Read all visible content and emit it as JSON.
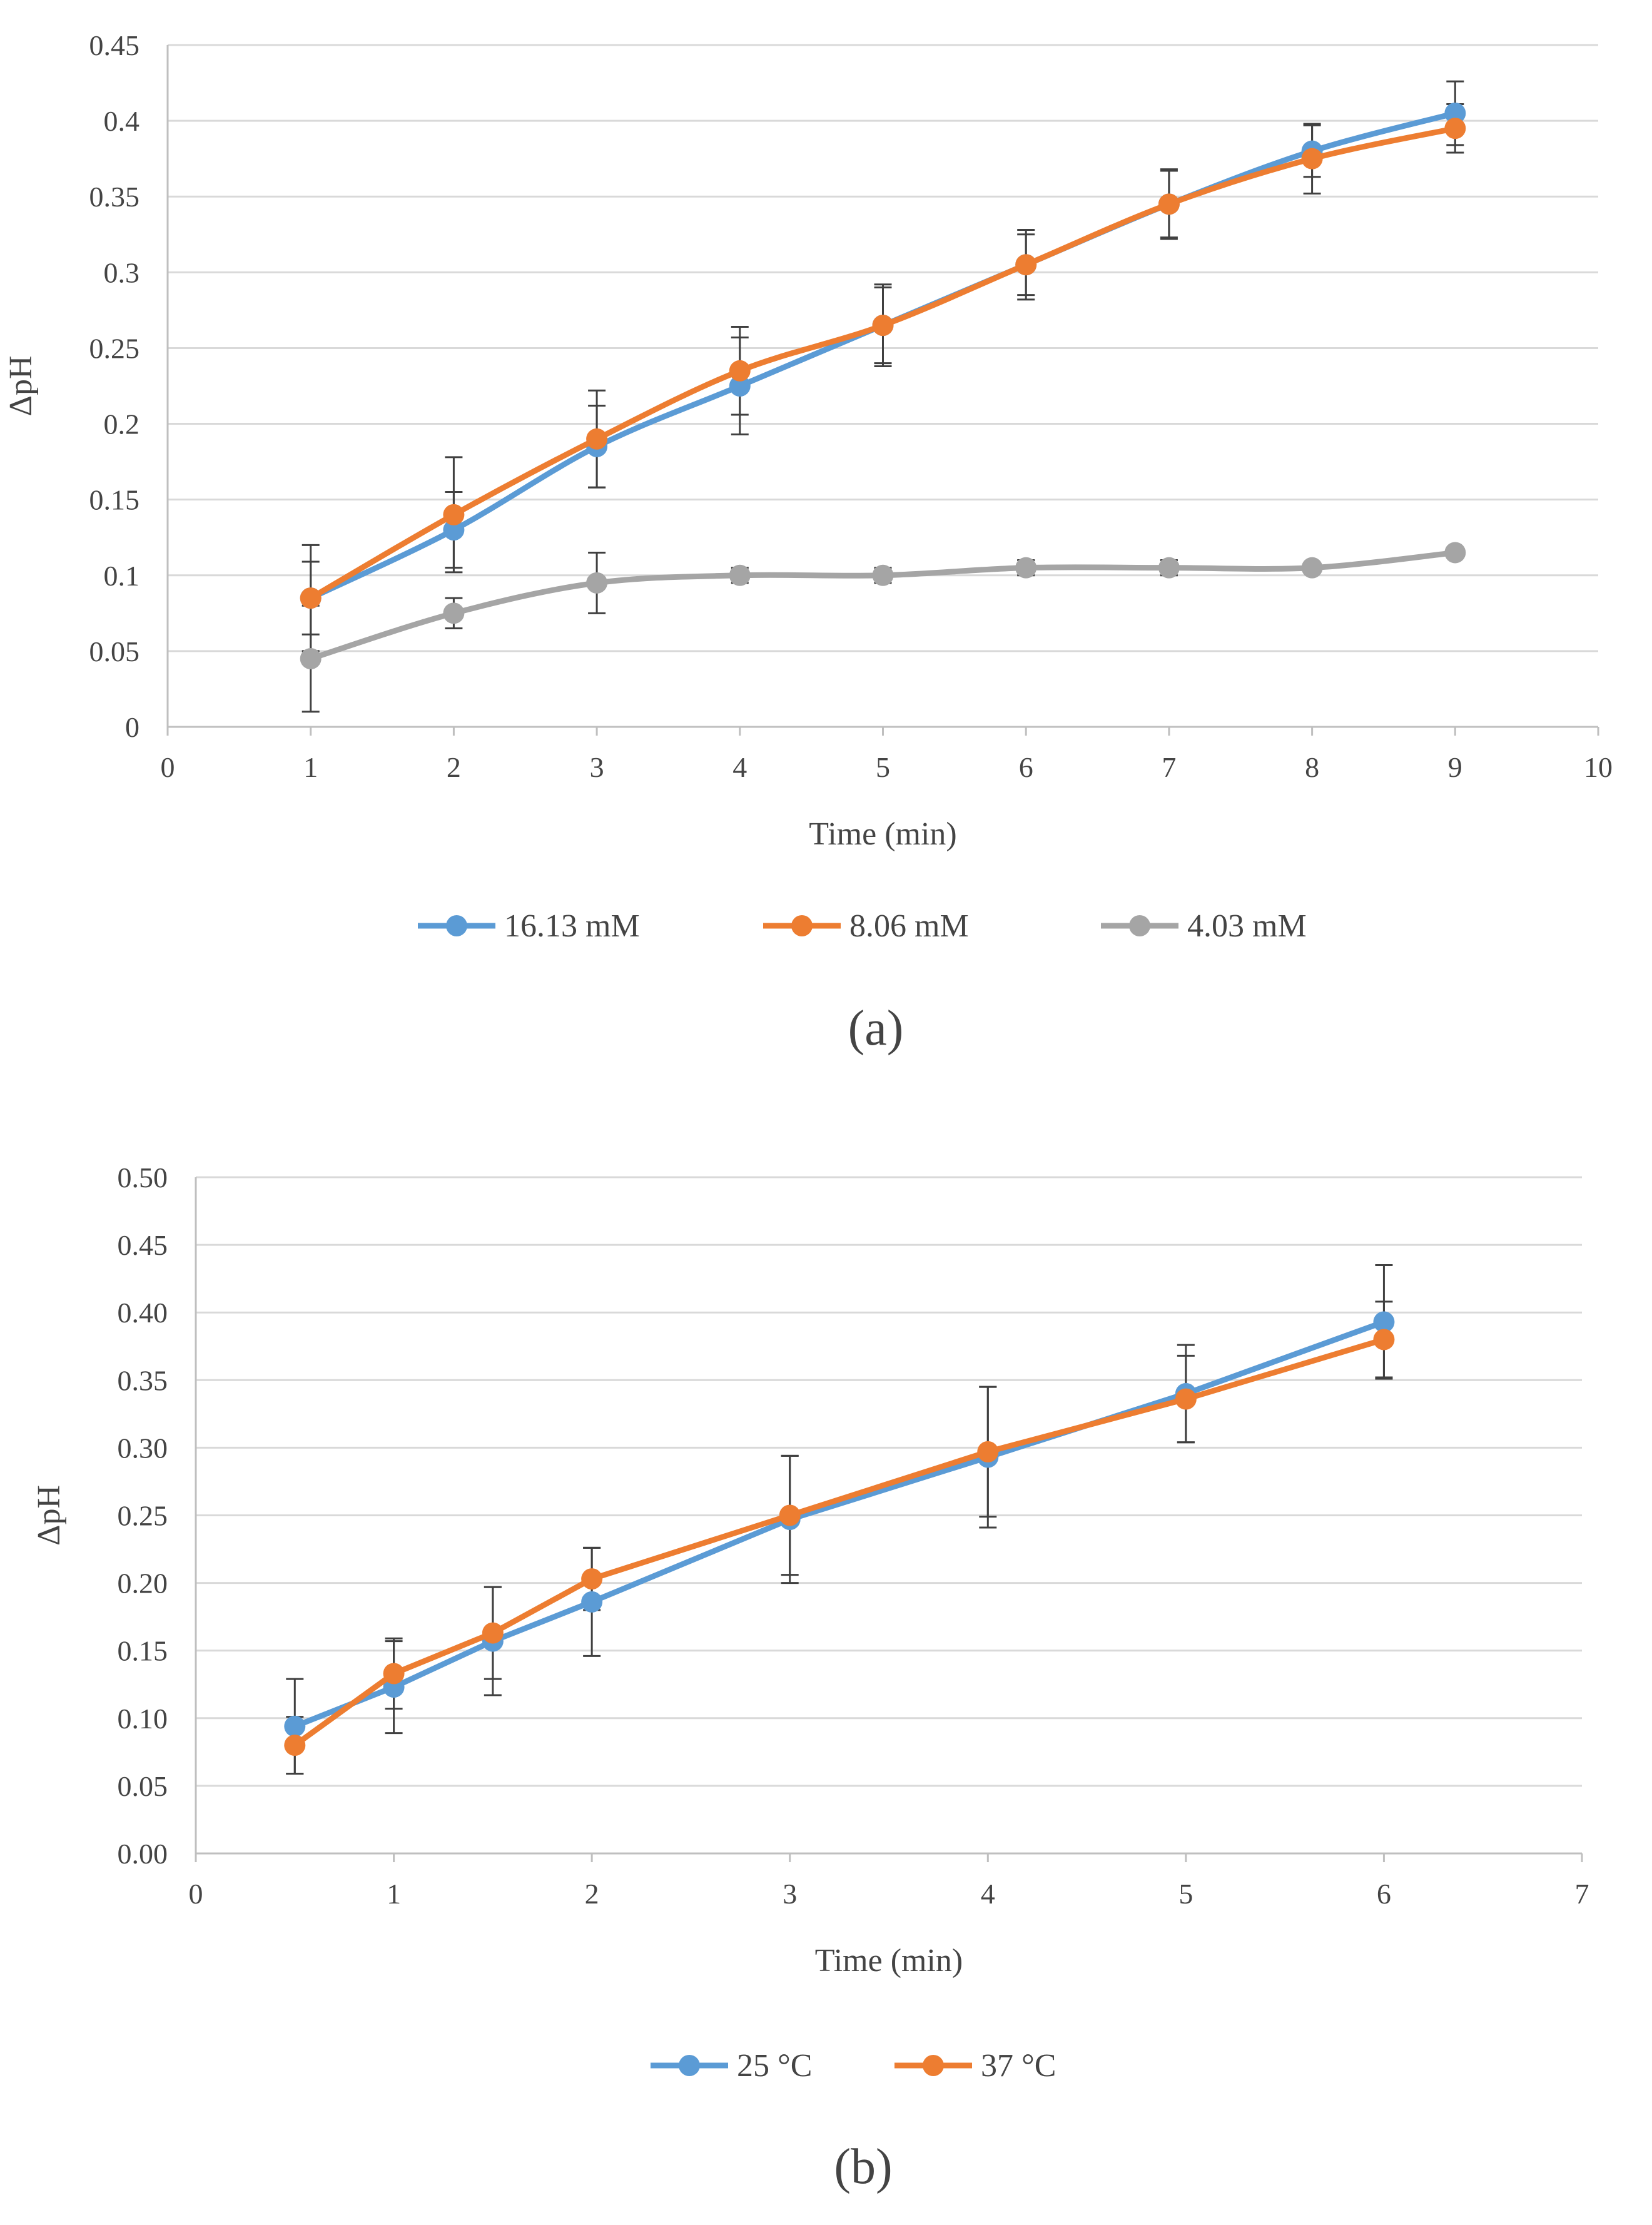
{
  "chart_data": [
    {
      "id": "a",
      "type": "line",
      "caption": "(a)",
      "xlabel": "Time (min)",
      "ylabel": "ΔpH",
      "xlim": [
        0,
        10
      ],
      "ylim": [
        0,
        0.45
      ],
      "xticks": [
        0,
        1,
        2,
        3,
        4,
        5,
        6,
        7,
        8,
        9,
        10
      ],
      "yticks": [
        0,
        0.05,
        0.1,
        0.15,
        0.2,
        0.25,
        0.3,
        0.35,
        0.4,
        0.45
      ],
      "xtick_labels": [
        "0",
        "1",
        "2",
        "3",
        "4",
        "5",
        "6",
        "7",
        "8",
        "9",
        "10"
      ],
      "ytick_labels": [
        "0",
        "0.05",
        "0.1",
        "0.15",
        "0.2",
        "0.25",
        "0.3",
        "0.35",
        "0.4",
        "0.45"
      ],
      "grid": "horizontal",
      "legend_position": "bottom",
      "series": [
        {
          "name": "16.13 mM",
          "color": "#5b9bd5",
          "x": [
            1,
            2,
            3,
            4,
            5,
            6,
            7,
            8,
            9
          ],
          "values": [
            0.085,
            0.13,
            0.185,
            0.225,
            0.265,
            0.305,
            0.345,
            0.38,
            0.405
          ],
          "errors": [
            0.035,
            0.025,
            0.027,
            0.032,
            0.025,
            0.02,
            0.023,
            0.017,
            0.021
          ]
        },
        {
          "name": "8.06 mM",
          "color": "#ed7d31",
          "x": [
            1,
            2,
            3,
            4,
            5,
            6,
            7,
            8,
            9
          ],
          "values": [
            0.085,
            0.14,
            0.19,
            0.235,
            0.265,
            0.305,
            0.345,
            0.375,
            0.395
          ],
          "errors": [
            0.024,
            0.038,
            0.032,
            0.029,
            0.027,
            0.023,
            0.022,
            0.023,
            0.016
          ]
        },
        {
          "name": "4.03 mM",
          "color": "#a5a5a5",
          "x": [
            1,
            2,
            3,
            4,
            5,
            6,
            7,
            8,
            9
          ],
          "values": [
            0.045,
            0.075,
            0.095,
            0.1,
            0.1,
            0.105,
            0.105,
            0.105,
            0.115
          ],
          "errors": [
            0.035,
            0.01,
            0.02,
            0.005,
            0.005,
            0.005,
            0.005,
            0,
            0
          ]
        }
      ]
    },
    {
      "id": "b",
      "type": "line",
      "caption": "(b)",
      "xlabel": "Time (min)",
      "ylabel": "ΔpH",
      "xlim": [
        0,
        7
      ],
      "ylim": [
        0,
        0.5
      ],
      "xticks": [
        0,
        1,
        2,
        3,
        4,
        5,
        6,
        7
      ],
      "yticks": [
        0,
        0.05,
        0.1,
        0.15,
        0.2,
        0.25,
        0.3,
        0.35,
        0.4,
        0.45,
        0.5
      ],
      "xtick_labels": [
        "0",
        "1",
        "2",
        "3",
        "4",
        "5",
        "6",
        "7"
      ],
      "ytick_labels": [
        "0.00",
        "0.05",
        "0.10",
        "0.15",
        "0.20",
        "0.25",
        "0.30",
        "0.35",
        "0.40",
        "0.45",
        "0.50"
      ],
      "grid": "horizontal",
      "legend_position": "bottom",
      "series": [
        {
          "name": "25 °C",
          "color": "#5b9bd5",
          "x": [
            0.5,
            1,
            1.5,
            2,
            3,
            4,
            5,
            6
          ],
          "values": [
            0.094,
            0.123,
            0.157,
            0.186,
            0.247,
            0.293,
            0.34,
            0.393
          ],
          "errors": [
            0.035,
            0.034,
            0.04,
            0.04,
            0.047,
            0.052,
            0.036,
            0.042
          ]
        },
        {
          "name": "37 °C",
          "color": "#ed7d31",
          "x": [
            0.5,
            1,
            1.5,
            2,
            3,
            4,
            5,
            6
          ],
          "values": [
            0.08,
            0.133,
            0.163,
            0.203,
            0.25,
            0.297,
            0.336,
            0.38
          ],
          "errors": [
            0.021,
            0.026,
            0.034,
            0.023,
            0.044,
            0.048,
            0.032,
            0.028
          ]
        }
      ]
    }
  ]
}
